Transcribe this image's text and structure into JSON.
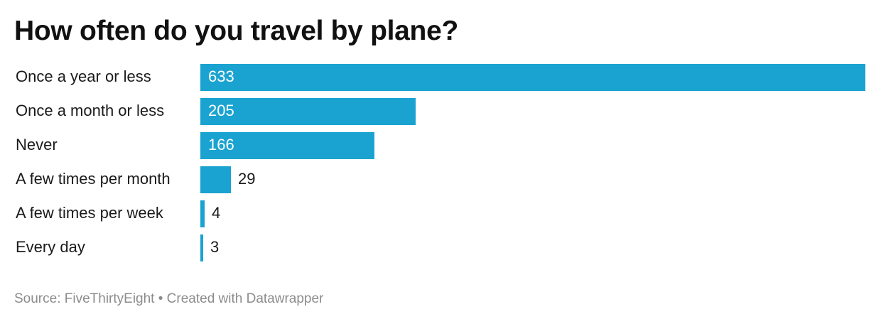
{
  "chart_data": {
    "type": "bar",
    "orientation": "horizontal",
    "title": "How often do you travel by plane?",
    "categories": [
      "Once a year or less",
      "Once a month or less",
      "Never",
      "A few times per month",
      "A few times per week",
      "Every day"
    ],
    "values": [
      633,
      205,
      166,
      29,
      4,
      3
    ],
    "value_labels": [
      "633",
      "205",
      "166",
      "29",
      "4",
      "3"
    ],
    "xlim": [
      0,
      633
    ],
    "xlabel": "",
    "ylabel": "",
    "grid": false,
    "bar_color": "#1aa3d0"
  },
  "footer": {
    "text": "Source: FiveThirtyEight • Created with Datawrapper"
  }
}
